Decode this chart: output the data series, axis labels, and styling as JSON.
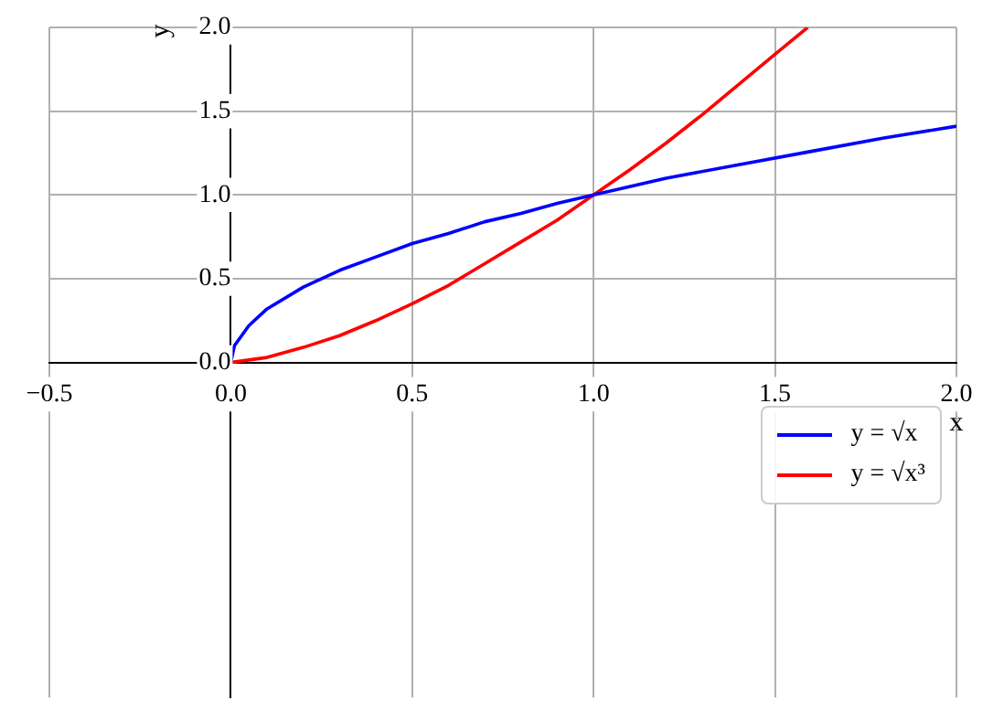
{
  "chart_data": {
    "type": "line",
    "xlabel": "x",
    "ylabel": "y",
    "xlim": [
      -0.5,
      2.0
    ],
    "xticks": [
      {
        "value": -0.5,
        "label": "−0.5"
      },
      {
        "value": 0,
        "label": "0.0"
      },
      {
        "value": 0.5,
        "label": "0.5"
      },
      {
        "value": 1,
        "label": "1.0"
      },
      {
        "value": 1.5,
        "label": "1.5"
      },
      {
        "value": 2,
        "label": "2.0"
      }
    ],
    "ylim": [
      -2.0,
      2.0
    ],
    "yticks": [
      {
        "value": 0,
        "label": "0.0"
      },
      {
        "value": 0.5,
        "label": "0.5"
      },
      {
        "value": 1,
        "label": "1.0"
      },
      {
        "value": 1.5,
        "label": "1.5"
      },
      {
        "value": 2,
        "label": "2.0"
      }
    ],
    "grid": true,
    "legend": "right",
    "marker": "none",
    "line_style": "solid",
    "series": [
      {
        "name": "y = √x",
        "color": "#0000ff",
        "x": [
          0,
          0.01,
          0.05,
          0.1,
          0.2,
          0.3,
          0.4,
          0.5,
          0.6,
          0.7,
          0.8,
          0.9,
          1.0,
          1.2,
          1.4,
          1.6,
          1.8,
          2.0
        ],
        "values": [
          0,
          0.1,
          0.22,
          0.32,
          0.45,
          0.55,
          0.63,
          0.71,
          0.77,
          0.84,
          0.89,
          0.95,
          1.0,
          1.1,
          1.18,
          1.26,
          1.34,
          1.41
        ]
      },
      {
        "name": "y = √x³",
        "color": "#ff0000",
        "x": [
          0,
          0.1,
          0.2,
          0.3,
          0.4,
          0.5,
          0.6,
          0.7,
          0.8,
          0.9,
          1.0,
          1.1,
          1.2,
          1.3,
          1.4,
          1.5,
          1.59
        ],
        "values": [
          0,
          0.03,
          0.09,
          0.16,
          0.25,
          0.35,
          0.46,
          0.59,
          0.72,
          0.85,
          1.0,
          1.15,
          1.31,
          1.48,
          1.66,
          1.84,
          2.0
        ]
      }
    ]
  }
}
